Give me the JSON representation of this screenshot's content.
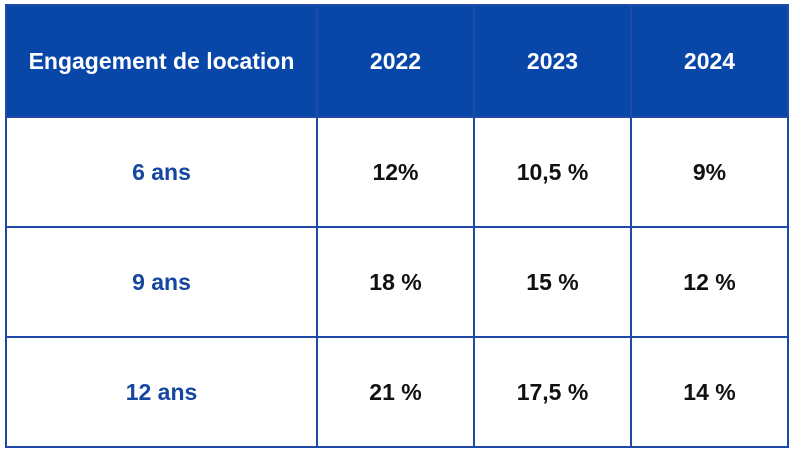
{
  "table": {
    "headers": [
      "Engagement de location",
      "2022",
      "2023",
      "2024"
    ],
    "rows": [
      {
        "label": "6 ans",
        "values": [
          "12%",
          "10,5 %",
          "9%"
        ]
      },
      {
        "label": "9 ans",
        "values": [
          "18 %",
          "15 %",
          "12 %"
        ]
      },
      {
        "label": "12 ans",
        "values": [
          "21 %",
          "17,5 %",
          "14 %"
        ]
      }
    ]
  },
  "colors": {
    "header_bg": "#0846a8",
    "header_text": "#ffffff",
    "border": "#1f4aa8",
    "row_label_text": "#1546a0",
    "cell_text": "#111111"
  }
}
